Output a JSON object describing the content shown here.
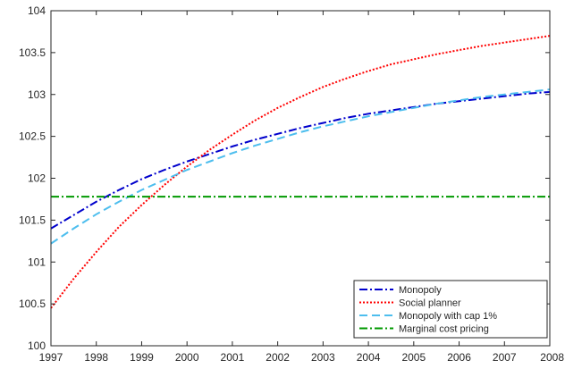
{
  "chart_data": {
    "type": "line",
    "title": "",
    "xlabel": "",
    "ylabel": "",
    "xlim": [
      1997,
      2008
    ],
    "ylim": [
      100,
      104
    ],
    "x_ticks": [
      1997,
      1998,
      1999,
      2000,
      2001,
      2002,
      2003,
      2004,
      2005,
      2006,
      2007,
      2008
    ],
    "y_ticks": [
      100,
      100.5,
      101,
      101.5,
      102,
      102.5,
      103,
      103.5,
      104
    ],
    "x_tick_labels": [
      "1997",
      "1998",
      "1999",
      "2000",
      "2001",
      "2002",
      "2003",
      "2004",
      "2005",
      "2006",
      "2007",
      "2008"
    ],
    "y_tick_labels": [
      "100",
      "100.5",
      "101",
      "101.5",
      "102",
      "102.5",
      "103",
      "103.5",
      "104"
    ],
    "grid": false,
    "legend_position": "bottom-right",
    "x": [
      1997,
      1997.5,
      1998,
      1998.5,
      1999,
      1999.5,
      2000,
      2000.5,
      2001,
      2001.5,
      2002,
      2002.5,
      2003,
      2003.5,
      2004,
      2004.5,
      2005,
      2005.5,
      2006,
      2006.5,
      2007,
      2007.5,
      2008
    ],
    "series": [
      {
        "name": "Monopoly",
        "color": "#0000cc",
        "dash": "dashdot",
        "values": [
          101.4,
          101.56,
          101.72,
          101.86,
          101.99,
          102.1,
          102.2,
          102.29,
          102.38,
          102.46,
          102.53,
          102.6,
          102.66,
          102.72,
          102.77,
          102.81,
          102.85,
          102.89,
          102.92,
          102.95,
          102.98,
          103.01,
          103.03
        ]
      },
      {
        "name": "Social planner",
        "color": "#ff0000",
        "dash": "dotted",
        "values": [
          100.45,
          100.8,
          101.12,
          101.42,
          101.68,
          101.92,
          102.14,
          102.34,
          102.52,
          102.69,
          102.84,
          102.97,
          103.09,
          103.19,
          103.28,
          103.36,
          103.42,
          103.48,
          103.53,
          103.58,
          103.62,
          103.66,
          103.7
        ]
      },
      {
        "name": "Monopoly with cap 1%",
        "color": "#4dbeee",
        "dash": "dashed",
        "values": [
          101.22,
          101.4,
          101.57,
          101.72,
          101.86,
          101.98,
          102.1,
          102.2,
          102.3,
          102.39,
          102.47,
          102.55,
          102.62,
          102.68,
          102.74,
          102.79,
          102.84,
          102.89,
          102.93,
          102.97,
          103.0,
          103.03,
          103.06
        ]
      },
      {
        "name": "Marginal cost pricing",
        "color": "#009900",
        "dash": "dashdot",
        "values": [
          101.78,
          101.78,
          101.78,
          101.78,
          101.78,
          101.78,
          101.78,
          101.78,
          101.78,
          101.78,
          101.78,
          101.78,
          101.78,
          101.78,
          101.78,
          101.78,
          101.78,
          101.78,
          101.78,
          101.78,
          101.78,
          101.78,
          101.78
        ]
      }
    ]
  }
}
